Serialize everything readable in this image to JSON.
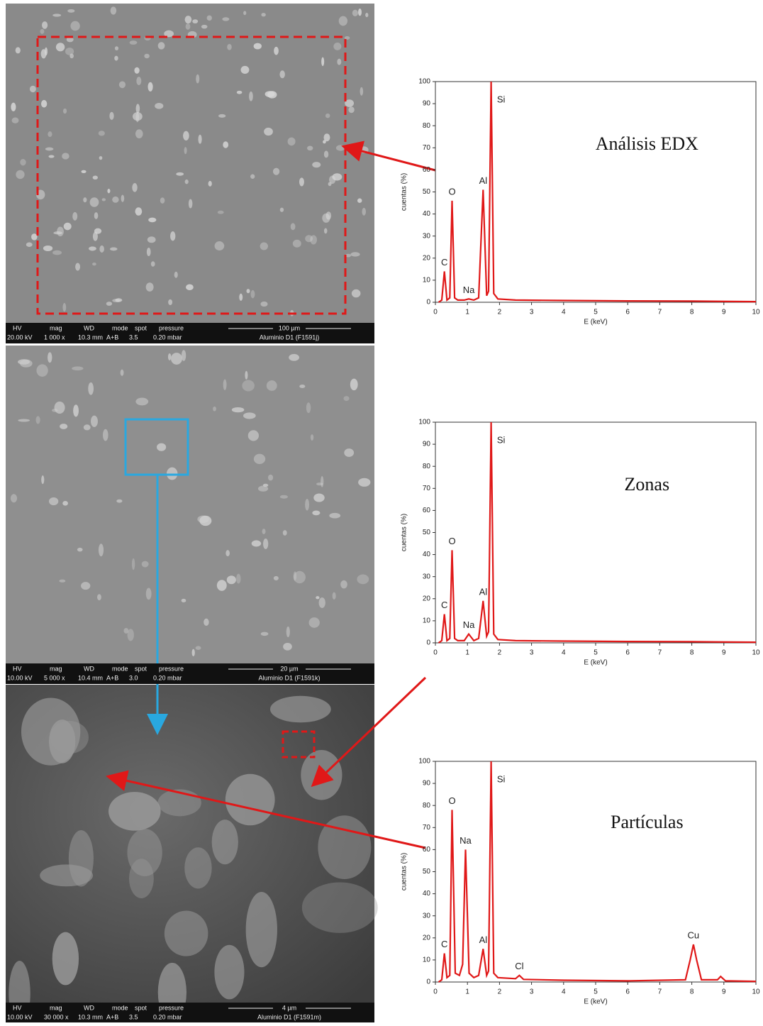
{
  "chart_data": [
    {
      "type": "line",
      "title": "Análisis EDX",
      "xlabel": "E (keV)",
      "ylabel": "cuentas (%)",
      "xlim": [
        0,
        10
      ],
      "xticks": [
        0,
        1,
        2,
        3,
        4,
        5,
        6,
        7,
        8,
        9,
        10
      ],
      "ylim": [
        0,
        100
      ],
      "yticks": [
        0,
        10,
        20,
        30,
        40,
        50,
        60,
        70,
        80,
        90,
        100
      ],
      "x": [
        0.1,
        0.2,
        0.28,
        0.36,
        0.45,
        0.52,
        0.6,
        0.7,
        0.9,
        1.04,
        1.2,
        1.35,
        1.49,
        1.6,
        1.66,
        1.74,
        1.82,
        1.95,
        2.5,
        4,
        6,
        8,
        10
      ],
      "series": [
        {
          "color": "#e01818",
          "values": [
            0,
            1,
            14,
            1,
            2,
            46,
            2,
            1,
            1,
            1.5,
            1,
            2,
            51,
            3,
            5,
            100,
            4,
            1.5,
            1,
            0.8,
            0.6,
            0.5,
            0.3
          ]
        }
      ],
      "annotations": [
        {
          "label": "C",
          "x": 0.28,
          "y": 14
        },
        {
          "label": "O",
          "x": 0.52,
          "y": 46
        },
        {
          "label": "Na",
          "x": 1.04,
          "y": 1.5
        },
        {
          "label": "Al",
          "x": 1.49,
          "y": 51
        },
        {
          "label": "Si",
          "x": 1.74,
          "y": 100
        }
      ]
    },
    {
      "type": "line",
      "title": "Zonas",
      "xlabel": "E (keV)",
      "ylabel": "cuentas (%)",
      "xlim": [
        0,
        10
      ],
      "xticks": [
        0,
        1,
        2,
        3,
        4,
        5,
        6,
        7,
        8,
        9,
        10
      ],
      "ylim": [
        0,
        100
      ],
      "yticks": [
        0,
        10,
        20,
        30,
        40,
        50,
        60,
        70,
        80,
        90,
        100
      ],
      "x": [
        0.1,
        0.2,
        0.28,
        0.36,
        0.45,
        0.52,
        0.6,
        0.7,
        0.9,
        1.04,
        1.2,
        1.35,
        1.49,
        1.6,
        1.66,
        1.74,
        1.82,
        1.95,
        2.5,
        4,
        6,
        8,
        10
      ],
      "series": [
        {
          "color": "#e01818",
          "values": [
            0,
            1,
            13,
            1,
            2,
            42,
            2,
            1,
            1,
            4,
            1,
            2,
            19,
            3,
            5,
            100,
            4,
            1.5,
            1,
            0.8,
            0.6,
            0.5,
            0.3
          ]
        }
      ],
      "annotations": [
        {
          "label": "C",
          "x": 0.28,
          "y": 13
        },
        {
          "label": "O",
          "x": 0.52,
          "y": 42
        },
        {
          "label": "Na",
          "x": 1.04,
          "y": 4
        },
        {
          "label": "Al",
          "x": 1.49,
          "y": 19
        },
        {
          "label": "Si",
          "x": 1.74,
          "y": 100
        }
      ]
    },
    {
      "type": "line",
      "title": "Partículas",
      "xlabel": "E (keV)",
      "ylabel": "cuentas (%)",
      "xlim": [
        0,
        10
      ],
      "xticks": [
        0,
        1,
        2,
        3,
        4,
        5,
        6,
        7,
        8,
        9,
        10
      ],
      "ylim": [
        0,
        100
      ],
      "yticks": [
        0,
        10,
        20,
        30,
        40,
        50,
        60,
        70,
        80,
        90,
        100
      ],
      "x": [
        0.1,
        0.2,
        0.28,
        0.36,
        0.45,
        0.52,
        0.62,
        0.75,
        0.85,
        0.94,
        1.05,
        1.2,
        1.35,
        1.49,
        1.6,
        1.66,
        1.74,
        1.82,
        1.95,
        2.5,
        2.62,
        2.75,
        4,
        6,
        7.8,
        7.95,
        8.05,
        8.15,
        8.3,
        8.8,
        8.9,
        9.05,
        10
      ],
      "series": [
        {
          "color": "#e01818",
          "values": [
            0,
            1,
            13,
            2,
            3,
            78,
            4,
            3,
            8,
            60,
            4,
            2,
            3,
            15,
            3,
            5,
            100,
            4,
            2,
            1.5,
            3,
            1.2,
            0.8,
            0.5,
            1,
            10,
            17,
            10,
            1,
            1,
            2.5,
            0.5,
            0.3
          ]
        }
      ],
      "annotations": [
        {
          "label": "C",
          "x": 0.28,
          "y": 13
        },
        {
          "label": "O",
          "x": 0.52,
          "y": 78
        },
        {
          "label": "Na",
          "x": 0.94,
          "y": 60
        },
        {
          "label": "Al",
          "x": 1.49,
          "y": 15
        },
        {
          "label": "Cl",
          "x": 2.62,
          "y": 3
        },
        {
          "label": "Si",
          "x": 1.74,
          "y": 100
        },
        {
          "label": "Cu",
          "x": 8.05,
          "y": 17
        }
      ]
    }
  ],
  "sem_images": [
    {
      "header": [
        "HV",
        "mag",
        "WD",
        "mode",
        "spot",
        "pressure"
      ],
      "values": [
        "20.00 kV",
        "1 000 x",
        "10.3 mm",
        "A+B",
        "3.5",
        "0.20 mbar"
      ],
      "scale": "100 µm",
      "sample": "Aluminio D1 (F1591j)"
    },
    {
      "header": [
        "HV",
        "mag",
        "WD",
        "mode",
        "spot",
        "pressure"
      ],
      "values": [
        "10.00 kV",
        "5 000 x",
        "10.4 mm",
        "A+B",
        "3.0",
        "0.20 mbar"
      ],
      "scale": "20 µm",
      "sample": "Aluminio D1 (F1591k)"
    },
    {
      "header": [
        "HV",
        "mag",
        "WD",
        "mode",
        "spot",
        "pressure"
      ],
      "values": [
        "10.00 kV",
        "30 000 x",
        "10.3 mm",
        "A+B",
        "3.5",
        "0.20 mbar"
      ],
      "scale": "4 µm",
      "sample": "Aluminio D1 (F1591m)"
    }
  ]
}
